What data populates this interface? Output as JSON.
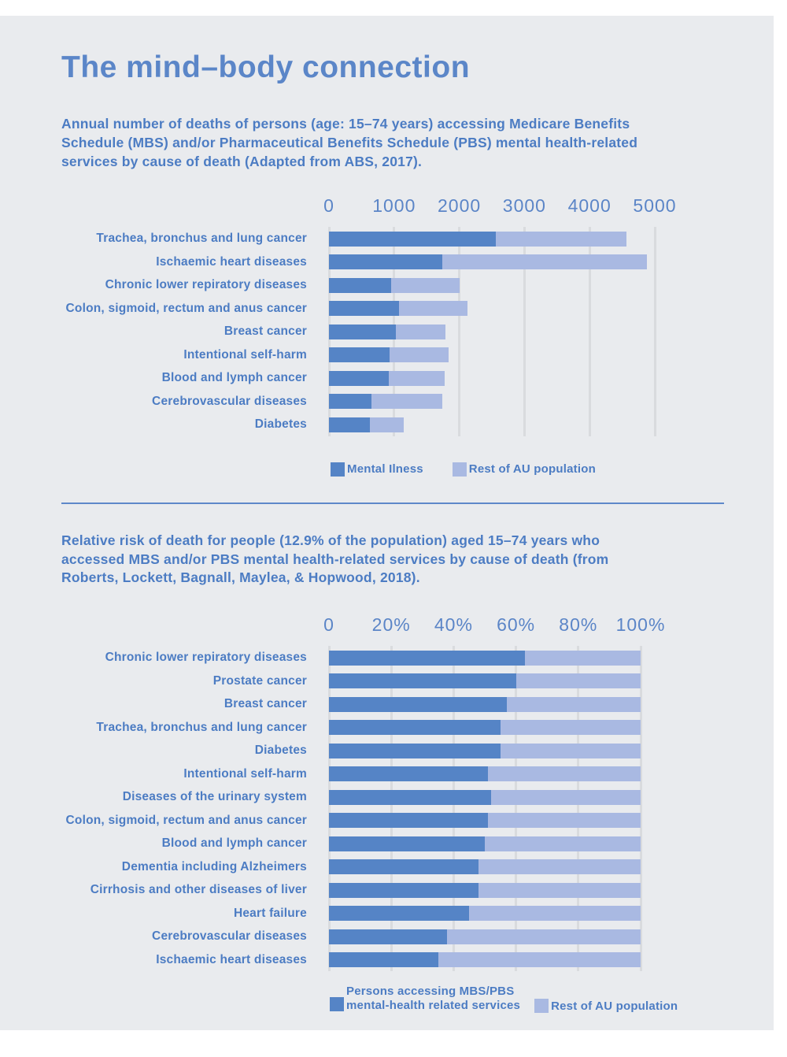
{
  "page": {
    "title": "The mind–body connection"
  },
  "colors": {
    "panel_background": "#e9ebee",
    "page_background": "#ffffff",
    "bar_primary": "#5584c6",
    "bar_secondary": "#a9b9e2",
    "heading_text": "#5b86c8",
    "body_text": "#4c7cc3",
    "gridline": "#d9dbde",
    "divider": "#5e88c9"
  },
  "chart_data": [
    {
      "type": "bar",
      "orientation": "horizontal",
      "stacked": true,
      "grid": true,
      "legend_position": "bottom",
      "title": "Annual number of deaths of persons (age: 15–74 years) accessing Medicare Benefits\nSchedule (MBS) and/or Pharmaceutical Benefits Schedule (PBS) mental health-related\nservices by cause of death (Adapted from ABS, 2017).",
      "axis_max": 5000,
      "x_ticks": [
        "0",
        "1000",
        "2000",
        "3000",
        "4000",
        "5000"
      ],
      "categories": [
        "Trachea, bronchus and lung cancer",
        "Ischaemic heart diseases",
        "Chronic lower repiratory diseases",
        "Colon, sigmoid, rectum and anus cancer",
        "Breast cancer",
        "Intentional self-harm",
        "Blood and lymph cancer",
        "Cerebrovascular diseases",
        "Diabetes"
      ],
      "series": [
        {
          "name": "Mental Ilness",
          "color": "#5584c6",
          "values": [
            2560,
            1740,
            960,
            1070,
            1030,
            930,
            915,
            650,
            630
          ]
        },
        {
          "name": "Rest of AU population",
          "color": "#a9b9e2",
          "values": [
            2010,
            3140,
            1040,
            1050,
            760,
            910,
            855,
            1090,
            520
          ]
        }
      ],
      "totals": [
        4570,
        4880,
        2000,
        2120,
        1790,
        1840,
        1770,
        1740,
        1150
      ]
    },
    {
      "type": "bar",
      "orientation": "horizontal",
      "stacked": true,
      "grid": true,
      "legend_position": "bottom",
      "title": "Relative risk of death for people (12.9% of the population) aged 15–74 years who\naccessed MBS and/or PBS mental health-related services by cause of death (from\nRoberts, Lockett, Bagnall, Maylea, & Hopwood, 2018).",
      "axis_max": 100,
      "x_ticks": [
        "0",
        "20%",
        "40%",
        "60%",
        "80%",
        "100%"
      ],
      "categories": [
        "Chronic lower repiratory diseases",
        "Prostate cancer",
        "Breast cancer",
        "Trachea, bronchus and lung cancer",
        "Diabetes",
        "Intentional self-harm",
        "Diseases of the urinary system",
        "Colon, sigmoid, rectum and anus cancer",
        "Blood and lymph cancer",
        "Dementia including Alzheimers",
        "Cirrhosis and other diseases of liver",
        "Heart failure",
        "Cerebrovascular diseases",
        "Ischaemic heart diseases"
      ],
      "series": [
        {
          "name": "Persons accessing MBS/PBS mental-health related services",
          "legend_lines": [
            "Persons accessing MBS/PBS",
            "mental-health related services"
          ],
          "color": "#5584c6",
          "values": [
            63,
            60,
            57,
            55,
            55,
            51,
            52,
            51,
            50,
            48,
            48,
            45,
            38,
            35
          ]
        },
        {
          "name": "Rest of AU population",
          "color": "#a9b9e2",
          "values": [
            37,
            40,
            43,
            45,
            45,
            49,
            48,
            49,
            50,
            52,
            52,
            55,
            62,
            65
          ]
        }
      ]
    }
  ]
}
